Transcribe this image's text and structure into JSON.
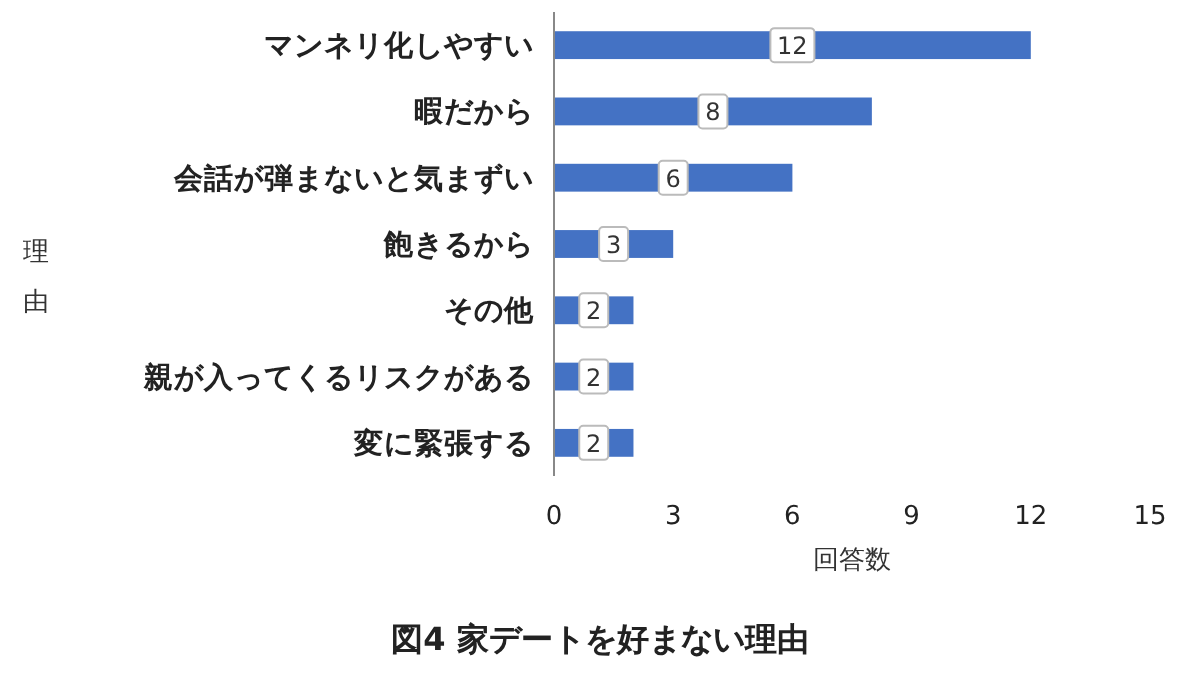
{
  "chart_data": {
    "type": "bar",
    "orientation": "horizontal",
    "title": "図4 家デートを好まない理由",
    "xlabel": "回答数",
    "ylabel": "理由",
    "categories": [
      "マンネリ化しやすい",
      "暇だから",
      "会話が弾まないと気まずい",
      "飽きるから",
      "その他",
      "親が入ってくるリスクがある",
      "変に緊張する"
    ],
    "values": [
      12,
      8,
      6,
      3,
      2,
      2,
      2
    ],
    "color": "#4472c4",
    "xlim": [
      0,
      15
    ],
    "xticks": [
      0,
      3,
      6,
      9,
      12,
      15
    ],
    "data_labels": true
  }
}
